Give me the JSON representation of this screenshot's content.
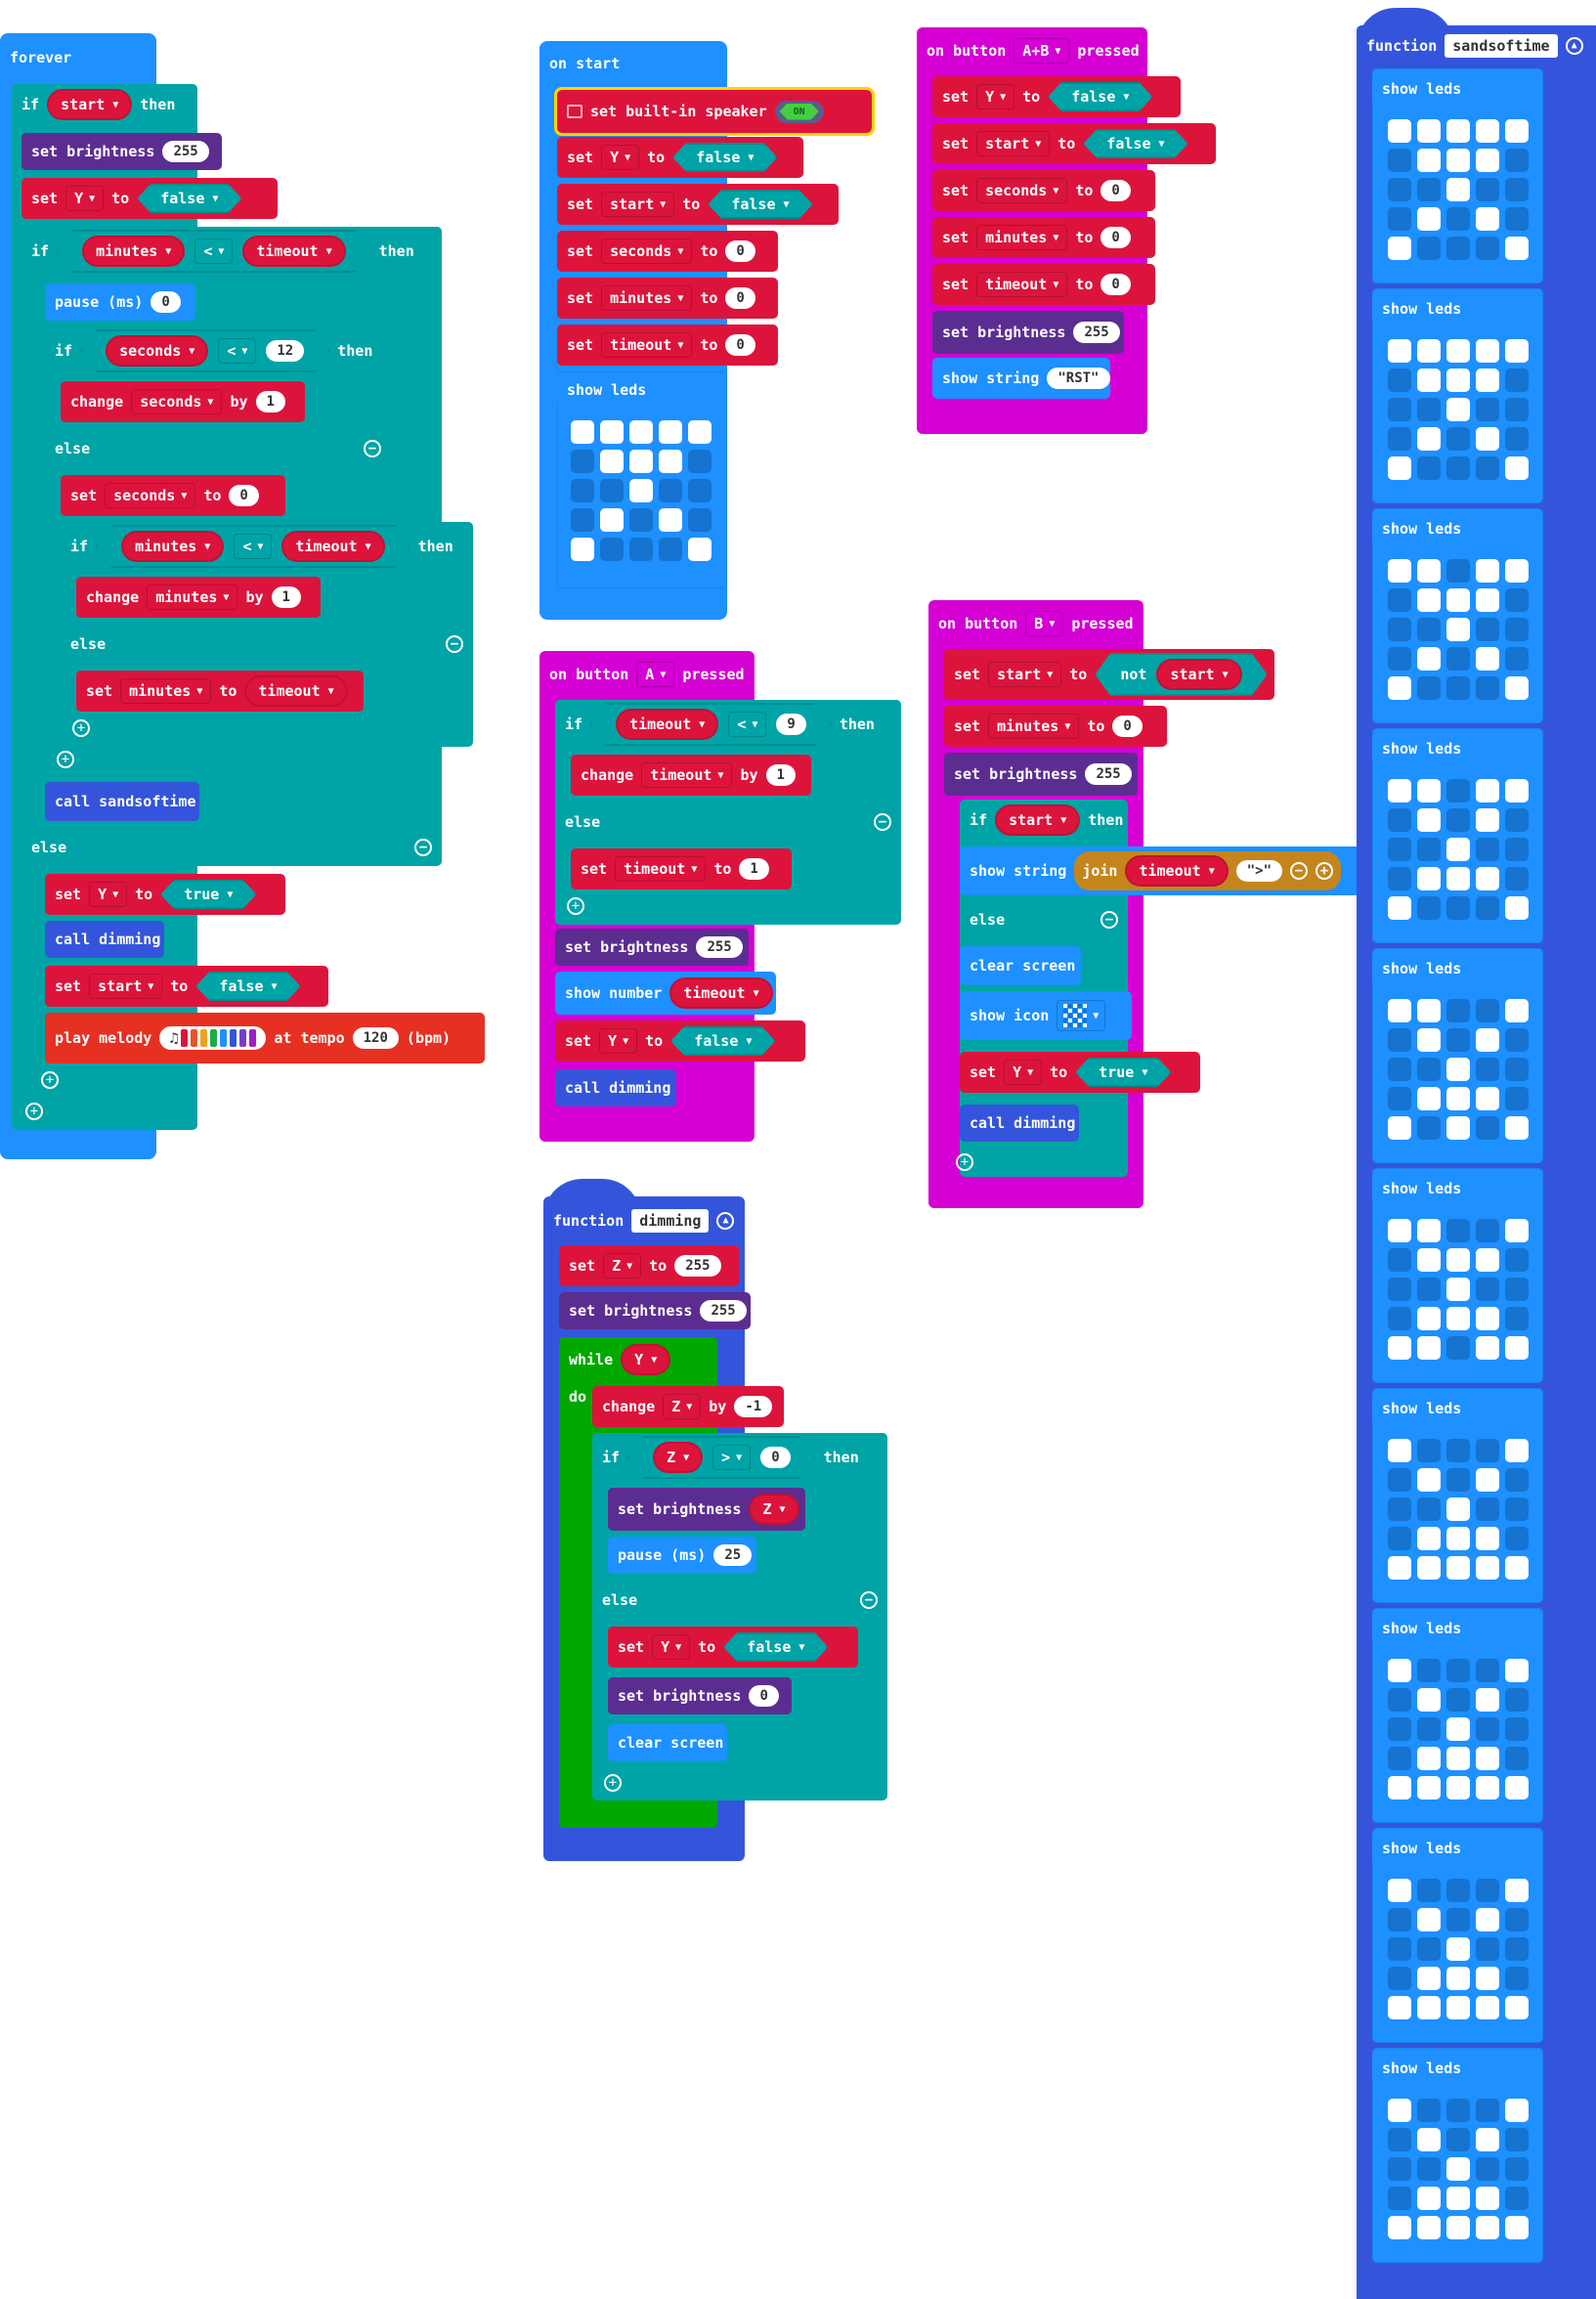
{
  "forever": {
    "label": "forever",
    "if_kw": "if",
    "then_kw": "then",
    "else_kw": "else",
    "var_start": "start",
    "var_y": "Y",
    "set_kw": "set",
    "to_kw": "to",
    "by_kw": "by",
    "change_kw": "change",
    "set_brightness": "set brightness",
    "brightness_val": "255",
    "false_val": "false",
    "true_val": "true",
    "var_minutes": "minutes",
    "op_lt": "<",
    "var_timeout": "timeout",
    "pause": "pause (ms)",
    "pause_val": "0",
    "var_seconds": "seconds",
    "seconds_limit": "12",
    "change_val": "1",
    "zero_val": "0",
    "call_sandsoftime": "call sandsoftime",
    "call_dimming": "call dimming",
    "play_melody": "play melody",
    "at_tempo": "at tempo",
    "tempo_val": "120",
    "bpm": "(bpm)",
    "melody_colors": [
      "#dc143c",
      "#e8532a",
      "#f0a020",
      "#1faa4a",
      "#1e90ff",
      "#3455db",
      "#7a3cc8",
      "#a020c0"
    ]
  },
  "on_start": {
    "label": "on start",
    "speaker": "set built-in speaker",
    "speaker_state": "ON",
    "set_kw": "set",
    "to_kw": "to",
    "var_y": "Y",
    "var_start": "start",
    "var_seconds": "seconds",
    "var_minutes": "minutes",
    "var_timeout": "timeout",
    "false_val": "false",
    "zero_val": "0",
    "show_leds": "show leds",
    "leds": [
      1,
      1,
      1,
      1,
      1,
      0,
      1,
      1,
      1,
      0,
      0,
      0,
      1,
      0,
      0,
      0,
      1,
      0,
      1,
      0,
      1,
      0,
      0,
      0,
      1
    ]
  },
  "button_a": {
    "label": "on button",
    "button": "A",
    "pressed": "pressed",
    "if_kw": "if",
    "then_kw": "then",
    "else_kw": "else",
    "var_timeout": "timeout",
    "op_lt": "<",
    "limit": "9",
    "change_kw": "change",
    "by_kw": "by",
    "one_val": "1",
    "set_kw": "set",
    "to_kw": "to",
    "set_brightness": "set brightness",
    "brightness_val": "255",
    "show_number": "show number",
    "var_y": "Y",
    "false_val": "false",
    "call_dimming": "call dimming"
  },
  "dimming": {
    "function_kw": "function",
    "name": "dimming",
    "set_kw": "set",
    "to_kw": "to",
    "var_z": "Z",
    "z_val": "255",
    "set_brightness": "set brightness",
    "brightness_val": "255",
    "while_kw": "while",
    "do_kw": "do",
    "var_y": "Y",
    "change_kw": "change",
    "by_kw": "by",
    "minus_one": "-1",
    "if_kw": "if",
    "then_kw": "then",
    "else_kw": "else",
    "op_gt": ">",
    "zero_val": "0",
    "pause": "pause (ms)",
    "pause_val": "25",
    "false_val": "false",
    "clear_screen": "clear screen"
  },
  "button_ab": {
    "label": "on button",
    "button": "A+B",
    "pressed": "pressed",
    "set_kw": "set",
    "to_kw": "to",
    "var_y": "Y",
    "var_start": "start",
    "var_seconds": "seconds",
    "var_minutes": "minutes",
    "var_timeout": "timeout",
    "false_val": "false",
    "zero_val": "0",
    "set_brightness": "set brightness",
    "brightness_val": "255",
    "show_string": "show string",
    "rst": "\"RST\""
  },
  "button_b": {
    "label": "on button",
    "button": "B",
    "pressed": "pressed",
    "set_kw": "set",
    "to_kw": "to",
    "not_kw": "not",
    "var_start": "start",
    "var_minutes": "minutes",
    "var_timeout": "timeout",
    "var_y": "Y",
    "zero_val": "0",
    "set_brightness": "set brightness",
    "brightness_val": "255",
    "if_kw": "if",
    "then_kw": "then",
    "else_kw": "else",
    "show_string": "show string",
    "join_kw": "join",
    "gt_str": "\">\"",
    "clear_screen": "clear screen",
    "show_icon": "show icon",
    "true_val": "true",
    "call_dimming": "call dimming",
    "icon_leds": [
      1,
      0,
      1,
      0,
      1,
      0,
      1,
      0,
      1,
      0,
      1,
      0,
      1,
      0,
      1,
      0,
      1,
      0,
      1,
      0,
      1,
      0,
      1,
      0,
      1
    ]
  },
  "sandsoftime": {
    "function_kw": "function",
    "name": "sandsoftime",
    "show_leds": "show leds",
    "frames": [
      [
        1,
        1,
        1,
        1,
        1,
        0,
        1,
        1,
        1,
        0,
        0,
        0,
        1,
        0,
        0,
        0,
        1,
        0,
        1,
        0,
        1,
        0,
        0,
        0,
        1
      ],
      [
        1,
        1,
        1,
        1,
        1,
        0,
        1,
        1,
        1,
        0,
        0,
        0,
        1,
        0,
        0,
        0,
        1,
        0,
        1,
        0,
        1,
        0,
        0,
        0,
        1
      ],
      [
        1,
        1,
        0,
        1,
        1,
        0,
        1,
        1,
        1,
        0,
        0,
        0,
        1,
        0,
        0,
        0,
        1,
        0,
        1,
        0,
        1,
        0,
        0,
        0,
        1
      ],
      [
        1,
        1,
        0,
        1,
        1,
        0,
        1,
        0,
        1,
        0,
        0,
        0,
        1,
        0,
        0,
        0,
        1,
        1,
        1,
        0,
        1,
        0,
        0,
        0,
        1
      ],
      [
        1,
        1,
        0,
        0,
        1,
        0,
        1,
        0,
        1,
        0,
        0,
        0,
        1,
        0,
        0,
        0,
        1,
        1,
        1,
        0,
        1,
        0,
        1,
        0,
        1
      ],
      [
        1,
        1,
        0,
        0,
        1,
        0,
        1,
        1,
        1,
        0,
        0,
        0,
        1,
        0,
        0,
        0,
        1,
        1,
        1,
        0,
        1,
        1,
        0,
        1,
        1
      ],
      [
        1,
        0,
        0,
        0,
        1,
        0,
        1,
        0,
        1,
        0,
        0,
        0,
        1,
        0,
        0,
        0,
        1,
        1,
        1,
        0,
        1,
        1,
        1,
        1,
        1
      ],
      [
        1,
        0,
        0,
        0,
        1,
        0,
        1,
        0,
        1,
        0,
        0,
        0,
        1,
        0,
        0,
        0,
        1,
        1,
        1,
        0,
        1,
        1,
        1,
        1,
        1
      ],
      [
        1,
        0,
        0,
        0,
        1,
        0,
        1,
        0,
        1,
        0,
        0,
        0,
        1,
        0,
        0,
        0,
        1,
        1,
        1,
        0,
        1,
        1,
        1,
        1,
        1
      ],
      [
        1,
        0,
        0,
        0,
        1,
        0,
        1,
        0,
        1,
        0,
        0,
        0,
        1,
        0,
        0,
        0,
        1,
        1,
        1,
        0,
        1,
        1,
        1,
        1,
        1
      ]
    ]
  }
}
